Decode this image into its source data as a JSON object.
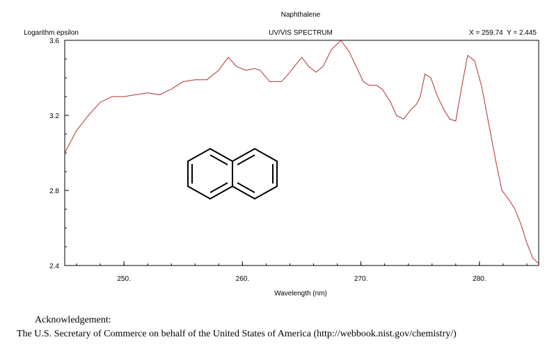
{
  "chart_data": {
    "type": "line",
    "title": "Naphthalene",
    "subtitle": "UV/VIS SPECTRUM",
    "ylabel": "Logarithm epsilon",
    "xlabel": "Wavelength (nm)",
    "cursor_readout": "X = 259.74  Y = 2.445",
    "xlim": [
      245,
      285
    ],
    "ylim": [
      2.4,
      3.6
    ],
    "x_ticks": [
      250,
      260,
      270,
      280
    ],
    "x_tick_labels": [
      "250.",
      "260.",
      "270.",
      "280."
    ],
    "y_ticks": [
      3.6,
      3.2,
      2.8,
      2.4
    ],
    "y_tick_labels": [
      "3.6",
      "3.2",
      "2.8",
      "2.4"
    ],
    "grid": false,
    "line_color": "#b03030",
    "series": [
      {
        "x": [
          245.0,
          246.0,
          247.0,
          248.0,
          249.0,
          250.0,
          251.0,
          252.0,
          253.0,
          254.0,
          255.0,
          256.0,
          257.0,
          258.0,
          258.8,
          259.5,
          260.3,
          261.0,
          261.5,
          262.3,
          263.3,
          264.0,
          265.0,
          265.6,
          266.2,
          266.8,
          267.5,
          268.3,
          269.0,
          269.6,
          270.2,
          270.7,
          271.3,
          271.8,
          272.5,
          273.0,
          273.6,
          274.2,
          274.7,
          275.0,
          275.4,
          275.9,
          276.4,
          277.0,
          277.5,
          278.0,
          278.5,
          279.0,
          279.6,
          280.2,
          280.8,
          281.4,
          281.9,
          282.5,
          283.0,
          283.5,
          284.0,
          284.5,
          285.0
        ],
        "y": [
          3.0,
          3.12,
          3.2,
          3.27,
          3.3,
          3.3,
          3.31,
          3.32,
          3.31,
          3.34,
          3.38,
          3.39,
          3.39,
          3.44,
          3.51,
          3.46,
          3.44,
          3.45,
          3.44,
          3.38,
          3.38,
          3.43,
          3.51,
          3.46,
          3.43,
          3.46,
          3.55,
          3.6,
          3.54,
          3.46,
          3.38,
          3.36,
          3.36,
          3.34,
          3.27,
          3.2,
          3.18,
          3.23,
          3.26,
          3.3,
          3.42,
          3.4,
          3.31,
          3.23,
          3.18,
          3.17,
          3.35,
          3.52,
          3.49,
          3.35,
          3.15,
          2.95,
          2.8,
          2.75,
          2.7,
          2.62,
          2.52,
          2.44,
          2.41
        ]
      }
    ]
  },
  "acknowledgement": {
    "heading": "Acknowledgement:",
    "text": "The U.S. Secretary of Commerce on behalf of the United States of America (http://webbook.nist.gov/chemistry/)"
  }
}
